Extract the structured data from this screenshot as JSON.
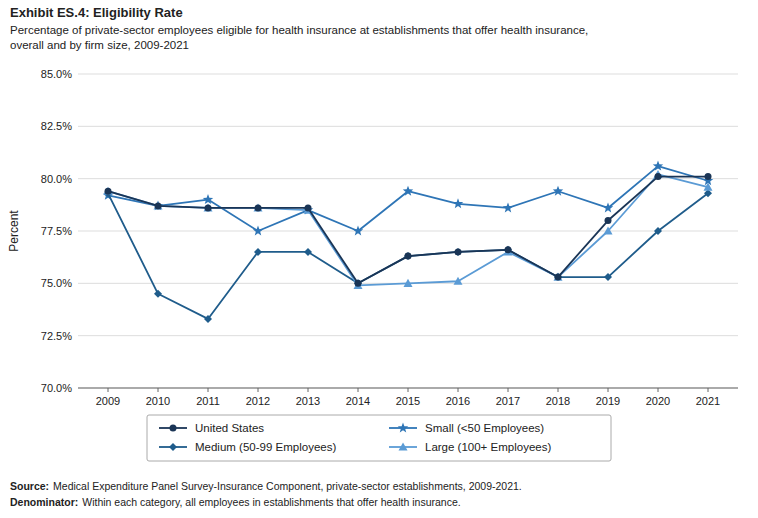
{
  "chart_data": {
    "type": "line",
    "title": "Exhibit ES.4: Eligibility Rate",
    "subtitle": [
      "Percentage of private-sector employees eligible for health insurance at establishments that offer health insurance,",
      "overall and by firm size, 2009-2021"
    ],
    "y_label": "Percent",
    "x": [
      2009,
      2010,
      2011,
      2012,
      2013,
      2014,
      2015,
      2016,
      2017,
      2018,
      2019,
      2020,
      2021
    ],
    "series": [
      {
        "name": "United States",
        "color": "#1a3556",
        "marker": "circle",
        "values": [
          79.4,
          78.7,
          78.6,
          78.6,
          78.6,
          75.0,
          76.3,
          76.5,
          76.6,
          75.3,
          78.0,
          80.1,
          80.1
        ]
      },
      {
        "name": "Small (<50 Employees)",
        "color": "#2e75b6",
        "marker": "star",
        "values": [
          79.2,
          78.7,
          79.0,
          77.5,
          78.5,
          77.5,
          79.4,
          78.8,
          78.6,
          79.4,
          78.6,
          80.6,
          79.9
        ]
      },
      {
        "name": "Medium (50-99 Employees)",
        "color": "#1f5c8b",
        "marker": "diamond",
        "values": [
          79.3,
          74.5,
          73.3,
          76.5,
          76.5,
          75.0,
          76.3,
          76.5,
          76.6,
          75.3,
          75.3,
          77.5,
          79.3
        ]
      },
      {
        "name": "Large (100+ Employees)",
        "color": "#5b9bd5",
        "marker": "triangle",
        "values": [
          79.4,
          78.7,
          78.6,
          78.6,
          78.5,
          74.9,
          75.0,
          75.1,
          76.5,
          75.3,
          77.5,
          80.2,
          79.6
        ]
      }
    ],
    "xlim": [
      2008.4,
      2021.6
    ],
    "xticks": [
      2009,
      2010,
      2011,
      2012,
      2013,
      2014,
      2015,
      2016,
      2017,
      2018,
      2019,
      2020,
      2021
    ],
    "ylim": [
      70.0,
      85.0
    ],
    "yticks": [
      {
        "value": 70.0,
        "label": "70.0%"
      },
      {
        "value": 72.5,
        "label": "72.5%"
      },
      {
        "value": 75.0,
        "label": "75.0%"
      },
      {
        "value": 77.5,
        "label": "77.5%"
      },
      {
        "value": 80.0,
        "label": "80.0%"
      },
      {
        "value": 82.5,
        "label": "82.5%"
      },
      {
        "value": 85.0,
        "label": "85.0%"
      }
    ],
    "grid": true,
    "legend": "bottom",
    "annotations": [
      {
        "label": "Source:",
        "text": "Medical Expenditure Panel Survey-Insurance Component, private-sector establishments, 2009-2021."
      },
      {
        "label": "Denominator:",
        "text": "Within each category, all employees in establishments that offer health insurance."
      }
    ]
  }
}
